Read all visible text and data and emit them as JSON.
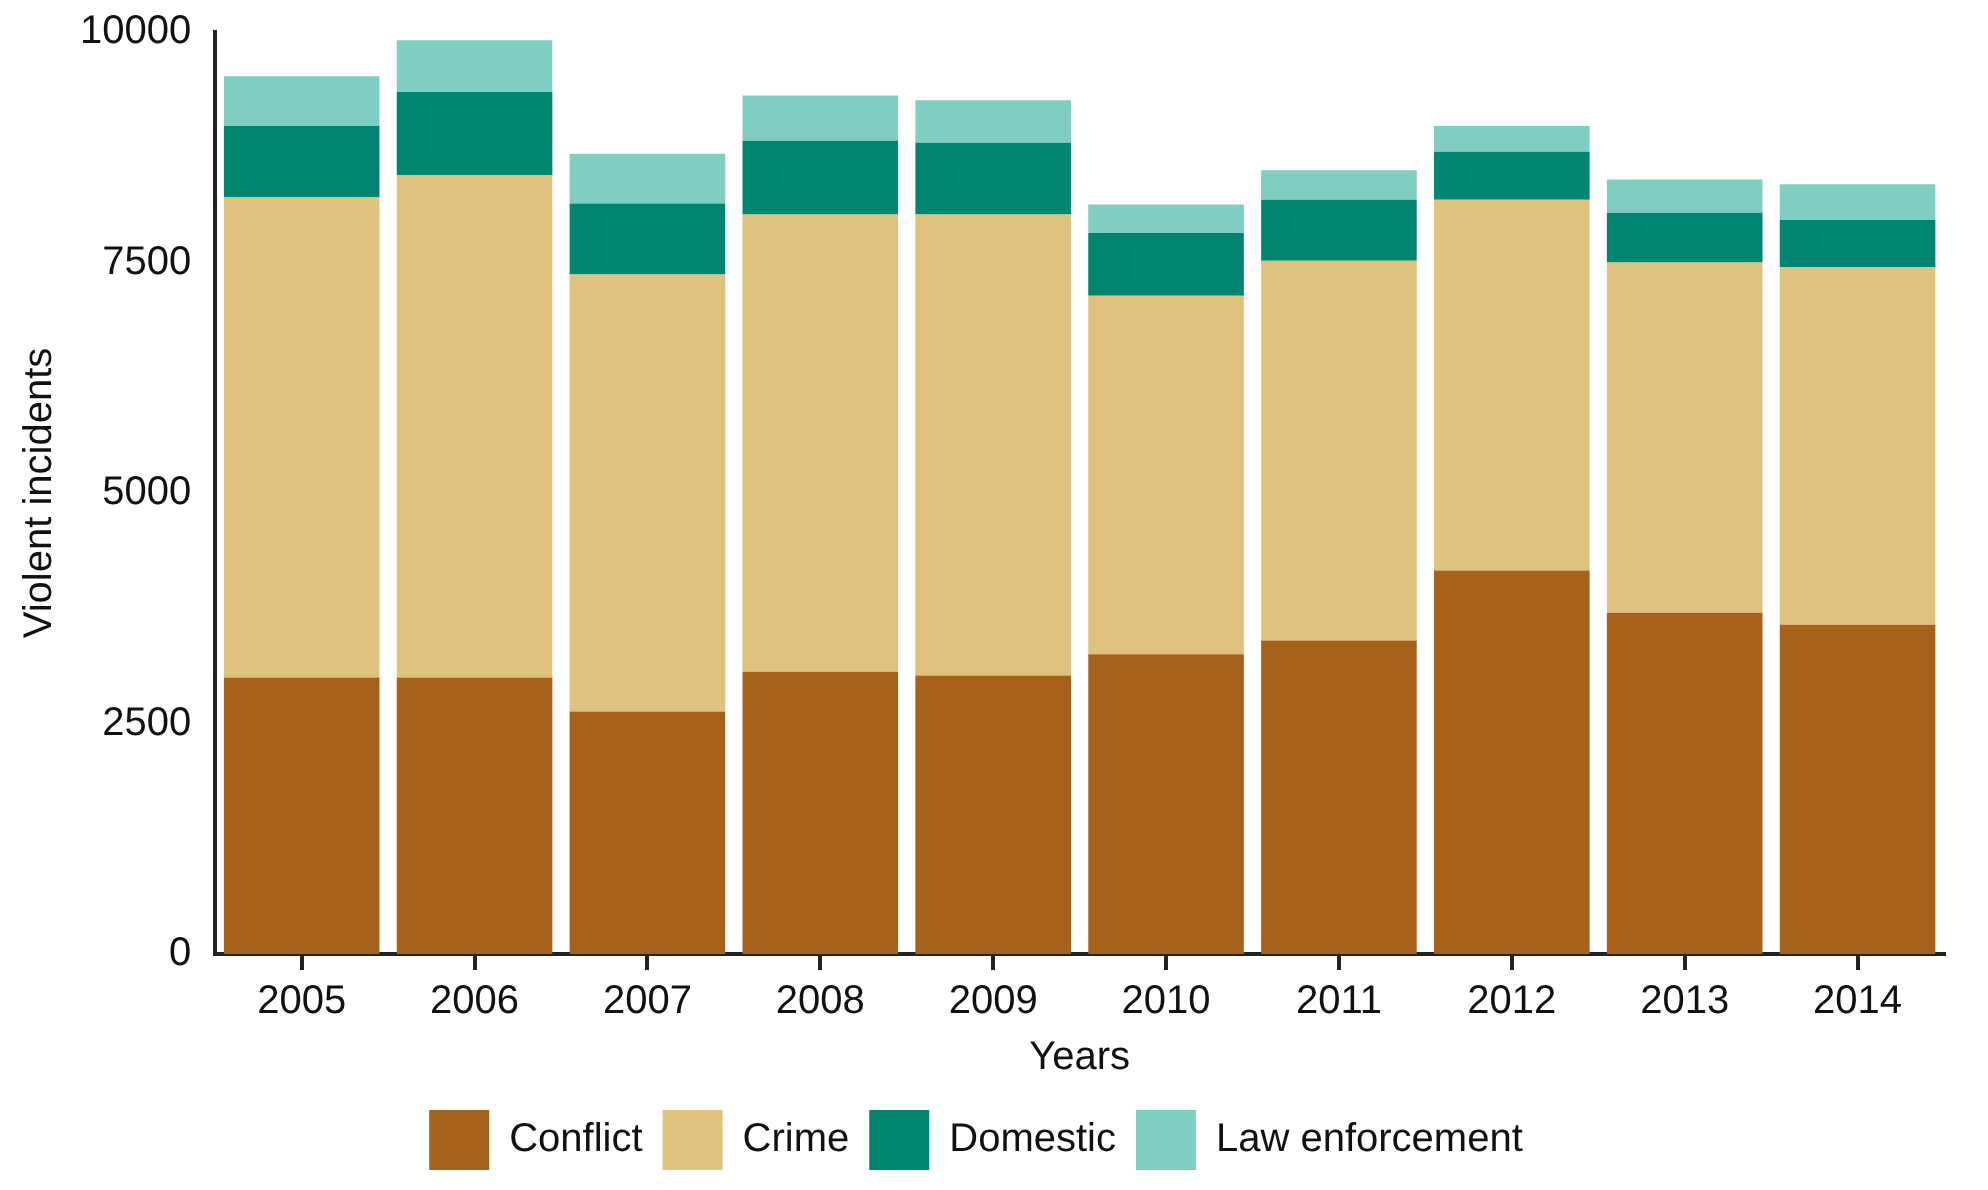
{
  "chart_data": {
    "type": "bar",
    "stacked": true,
    "xlabel": "Years",
    "ylabel": "Violent incidents",
    "categories": [
      "2005",
      "2006",
      "2007",
      "2008",
      "2009",
      "2010",
      "2011",
      "2012",
      "2013",
      "2014"
    ],
    "series": [
      {
        "name": "Conflict",
        "color": "#a6611a",
        "values": [
          3000,
          3000,
          2630,
          3060,
          3020,
          3250,
          3400,
          4160,
          3700,
          3570
        ]
      },
      {
        "name": "Crime",
        "color": "#dfc27d",
        "values": [
          5210,
          5450,
          4740,
          4960,
          5000,
          3890,
          4120,
          4020,
          3800,
          3880
        ]
      },
      {
        "name": "Domestic",
        "color": "#018571",
        "values": [
          770,
          900,
          770,
          800,
          780,
          680,
          660,
          520,
          540,
          510
        ]
      },
      {
        "name": "Law enforcement",
        "color": "#80cdc1",
        "values": [
          540,
          560,
          540,
          490,
          460,
          310,
          320,
          280,
          360,
          390
        ]
      }
    ],
    "ylim": [
      0,
      10000
    ],
    "yticks": [
      0,
      2500,
      5000,
      7500,
      10000
    ],
    "grid": false,
    "legend": "bottom"
  }
}
